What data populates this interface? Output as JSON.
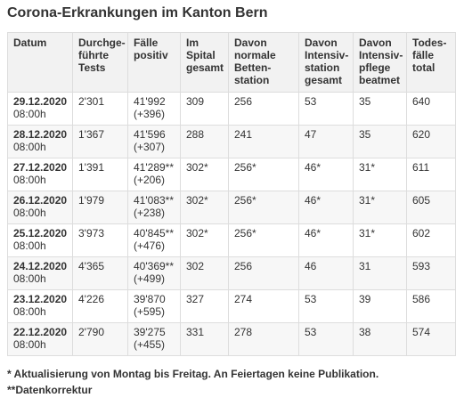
{
  "title": "Corona-Erkrankungen im Kanton Bern",
  "table": {
    "headers": [
      [
        "Datum"
      ],
      [
        "Durchge-",
        "führte",
        "Tests"
      ],
      [
        "Fälle",
        "positiv"
      ],
      [
        "Im",
        "Spital",
        "gesamt"
      ],
      [
        "Davon",
        "normale",
        "Betten-",
        "station"
      ],
      [
        "Davon",
        "Intensiv-",
        "station",
        "gesamt"
      ],
      [
        "Davon",
        "Intensiv-",
        "pflege",
        "beatmet"
      ],
      [
        "Todes-",
        "fälle",
        "total"
      ]
    ],
    "rows": [
      {
        "date": "29.12.2020",
        "time": "08:00h",
        "tests": "2'301",
        "cases": "41'992",
        "cases_delta": "(+396)",
        "hospital": "309",
        "normal": "256",
        "intensive": "53",
        "ventilated": "35",
        "deaths": "640"
      },
      {
        "date": "28.12.2020",
        "time": "08:00h",
        "tests": "1'367",
        "cases": "41'596",
        "cases_delta": "(+307)",
        "hospital": "288",
        "normal": "241",
        "intensive": "47",
        "ventilated": "35",
        "deaths": "620"
      },
      {
        "date": "27.12.2020",
        "time": "08:00h",
        "tests": "1'391",
        "cases": "41'289**",
        "cases_delta": "(+206)",
        "hospital": "302*",
        "normal": "256*",
        "intensive": "46*",
        "ventilated": "31*",
        "deaths": "611"
      },
      {
        "date": "26.12.2020",
        "time": "08:00h",
        "tests": "1'979",
        "cases": "41'083**",
        "cases_delta": "(+238)",
        "hospital": "302*",
        "normal": "256*",
        "intensive": "46*",
        "ventilated": "31*",
        "deaths": "605"
      },
      {
        "date": "25.12.2020",
        "time": "08:00h",
        "tests": "3'973",
        "cases": "40'845**",
        "cases_delta": "(+476)",
        "hospital": "302*",
        "normal": "256*",
        "intensive": "46*",
        "ventilated": "31*",
        "deaths": "602"
      },
      {
        "date": "24.12.2020",
        "time": "08:00h",
        "tests": "4'365",
        "cases": "40'369**",
        "cases_delta": "(+499)",
        "hospital": "302",
        "normal": "256",
        "intensive": "46",
        "ventilated": "31",
        "deaths": "593"
      },
      {
        "date": "23.12.2020",
        "time": "08:00h",
        "tests": "4'226",
        "cases": "39'870",
        "cases_delta": "(+595)",
        "hospital": "327",
        "normal": "274",
        "intensive": "53",
        "ventilated": "39",
        "deaths": "586"
      },
      {
        "date": "22.12.2020",
        "time": "08:00h",
        "tests": "2'790",
        "cases": "39'275",
        "cases_delta": "(+455)",
        "hospital": "331",
        "normal": "278",
        "intensive": "53",
        "ventilated": "38",
        "deaths": "574"
      }
    ]
  },
  "footnotes": [
    "* Aktualisierung von Montag bis Freitag. An Feiertagen keine Publikation.",
    "**Datenkorrektur"
  ]
}
